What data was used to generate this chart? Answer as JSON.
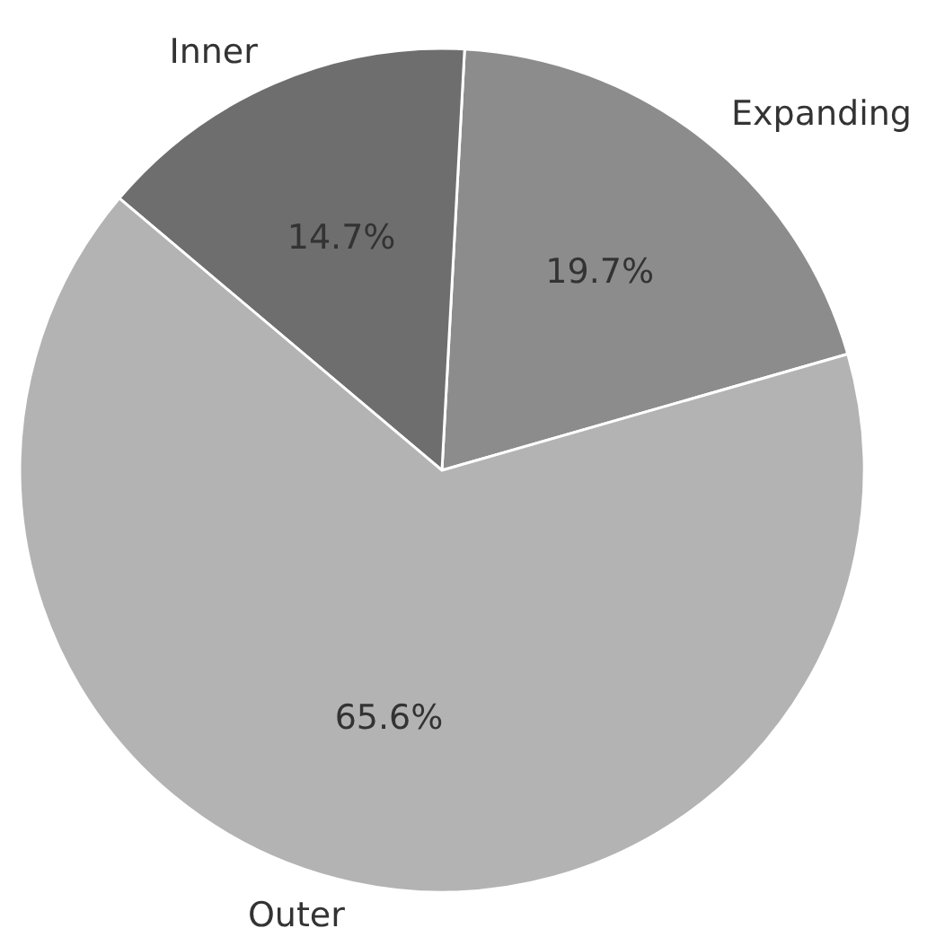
{
  "chart_data": {
    "type": "pie",
    "categories": [
      "Expanding",
      "Inner",
      "Outer"
    ],
    "values": [
      19.7,
      14.7,
      65.6
    ],
    "colors": [
      "#8c8c8c",
      "#6e6e6e",
      "#b3b3b3"
    ],
    "value_labels": [
      "19.7%",
      "14.7%",
      "65.6%"
    ]
  }
}
